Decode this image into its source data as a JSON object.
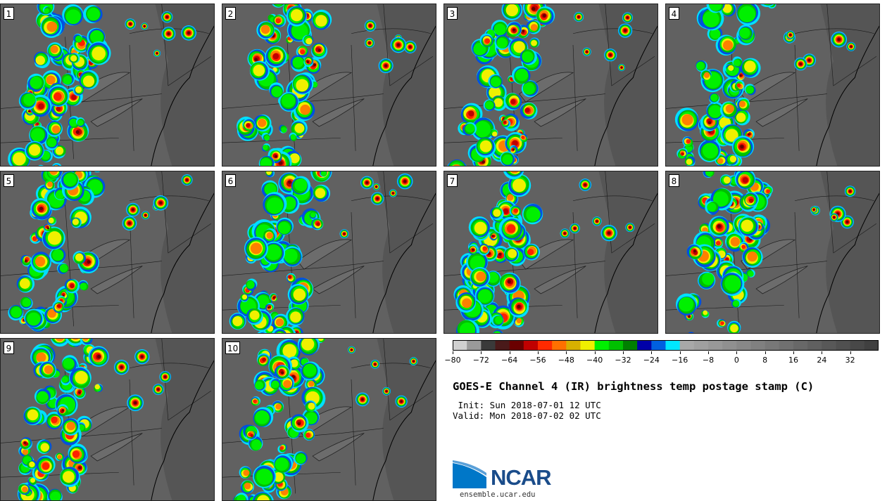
{
  "panels": [
    {
      "label": "1",
      "seed": 11
    },
    {
      "label": "2",
      "seed": 23
    },
    {
      "label": "3",
      "seed": 37
    },
    {
      "label": "4",
      "seed": 41
    },
    {
      "label": "5",
      "seed": 53
    },
    {
      "label": "6",
      "seed": 67
    },
    {
      "label": "7",
      "seed": 71
    },
    {
      "label": "8",
      "seed": 83
    },
    {
      "label": "9",
      "seed": 97
    },
    {
      "label": "10",
      "seed": 101
    }
  ],
  "colorbar": {
    "colors": [
      "#d0d0d0",
      "#9a9a9a",
      "#3a3a3a",
      "#4a1a1a",
      "#6a0000",
      "#c00000",
      "#ff2a00",
      "#ff7000",
      "#d8b000",
      "#f0f000",
      "#00f000",
      "#00c000",
      "#008000",
      "#0000a8",
      "#0060e0",
      "#00e8ff",
      "#a8a8a8",
      "#a0a0a0",
      "#989898",
      "#909090",
      "#888888",
      "#808080",
      "#787878",
      "#707070",
      "#686868",
      "#606060",
      "#585858",
      "#505050",
      "#484848",
      "#404040"
    ],
    "ticks": [
      "−80",
      "−72",
      "−64",
      "−56",
      "−48",
      "−40",
      "−32",
      "−24",
      "−16",
      "−8",
      "0",
      "8",
      "16",
      "24",
      "32"
    ]
  },
  "title": "GOES-E Channel 4 (IR) brightness temp postage stamp (C)",
  "init": " Init: Sun 2018-07-01 12 UTC",
  "valid": "Valid: Mon 2018-07-02 02 UTC",
  "logo": {
    "text": "NCAR",
    "url_text": "ensemble.ucar.edu"
  }
}
